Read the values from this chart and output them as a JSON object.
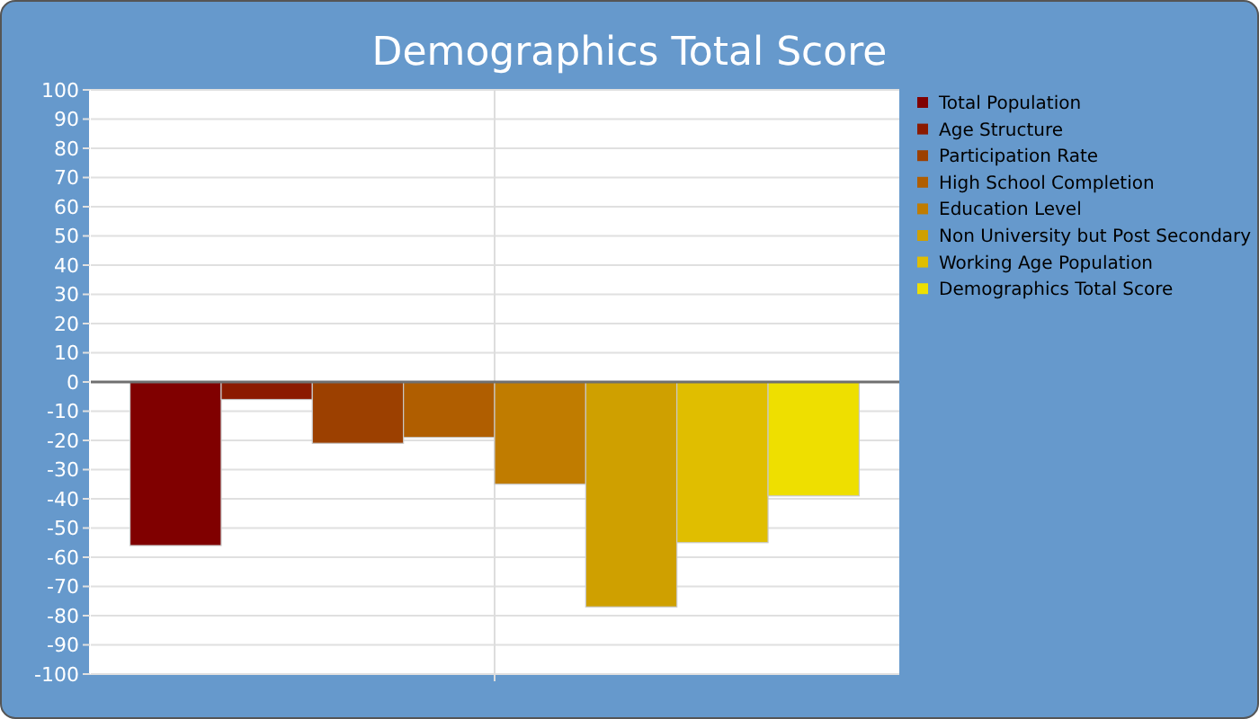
{
  "chart_data": {
    "type": "bar",
    "title": "Demographics Total Score",
    "categories": [
      null
    ],
    "series": [
      {
        "name": "Total Population",
        "color": "#800000",
        "values": [
          -56
        ]
      },
      {
        "name": "Age Structure",
        "color": "#8b1a00",
        "values": [
          -6
        ]
      },
      {
        "name": "Participation Rate",
        "color": "#9c4000",
        "values": [
          -21
        ]
      },
      {
        "name": "High School Completion",
        "color": "#b05e00",
        "values": [
          -19
        ]
      },
      {
        "name": "Education Level",
        "color": "#c07c00",
        "values": [
          -35
        ]
      },
      {
        "name": "Non University but Post Secondary",
        "color": "#cfa000",
        "values": [
          -77
        ]
      },
      {
        "name": "Working Age Population",
        "color": "#e0be00",
        "values": [
          -55
        ]
      },
      {
        "name": "Demographics Total Score",
        "color": "#eedf00",
        "values": [
          -39
        ]
      }
    ],
    "ylim": [
      -100,
      100
    ],
    "yticks": [
      -100,
      -90,
      -80,
      -70,
      -60,
      -50,
      -40,
      -30,
      -20,
      -10,
      0,
      10,
      20,
      30,
      40,
      50,
      60,
      70,
      80,
      90,
      100
    ],
    "grid": true,
    "legend": "right"
  }
}
